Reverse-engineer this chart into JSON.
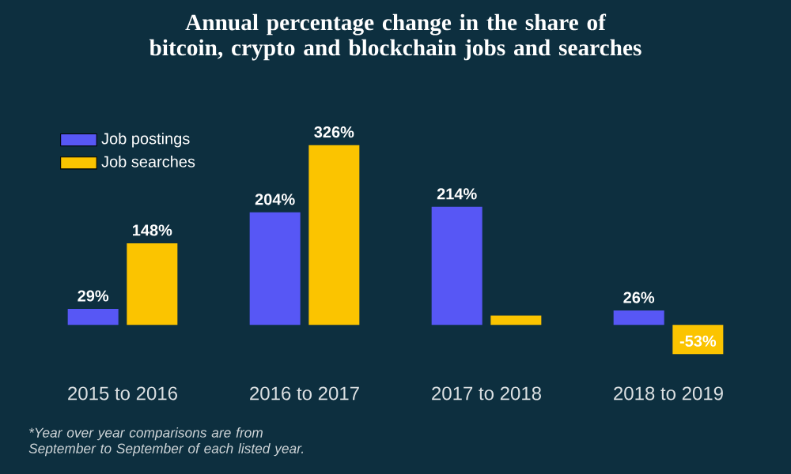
{
  "chart_data": {
    "type": "bar",
    "title": "Annual percentage change in the share of bitcoin, crypto and blockchain jobs and searches",
    "categories": [
      "2015 to 2016",
      "2016 to 2017",
      "2017 to 2018",
      "2018 to 2019"
    ],
    "series": [
      {
        "name": "Job postings",
        "color": "#5757f5",
        "values": [
          29,
          204,
          214,
          26
        ],
        "value_labels": [
          "29%",
          "204%",
          "214%",
          "26%"
        ]
      },
      {
        "name": "Job searches",
        "color": "#fbc400",
        "values": [
          148,
          326,
          17,
          -53
        ],
        "value_labels": [
          "148%",
          "326%",
          null,
          "-53%"
        ]
      }
    ],
    "legend": "top left",
    "annotations": [
      "*Year over year comparisons are from September to September of each listed year."
    ]
  }
}
